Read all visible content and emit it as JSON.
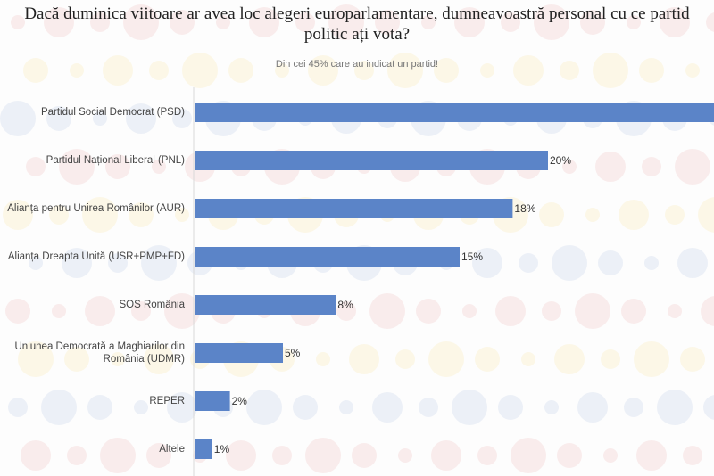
{
  "title": "Dacă duminica viitoare ar avea loc alegeri europarlamentare, dumneavoastră personal cu ce partid politic ați vota?",
  "chart_data": {
    "type": "bar",
    "orientation": "horizontal",
    "title": "Dacă duminica viitoare ar avea loc alegeri europarlamentare, dumneavoastră personal cu ce partid politic ați vota?",
    "subtitle": "Din cei 45% care au indicat un partid!",
    "categories": [
      "Partidul Social Democrat (PSD)",
      "Partidul Național Liberal (PNL)",
      "Alianța pentru Unirea Românilor (AUR)",
      "Alianța Dreapta Unită (USR+PMP+FD)",
      "SOS România",
      "Uniunea Democrată a Maghiarilor din România (UDMR)",
      "REPER",
      "Altele"
    ],
    "values": [
      30,
      20,
      18,
      15,
      8,
      5,
      2,
      1
    ],
    "value_labels": [
      null,
      "20%",
      "18%",
      "15%",
      "8%",
      "5%",
      "2%",
      "1%"
    ],
    "unit": "%",
    "bar_color": "#5b84c8",
    "grid": false,
    "legend": "none"
  }
}
